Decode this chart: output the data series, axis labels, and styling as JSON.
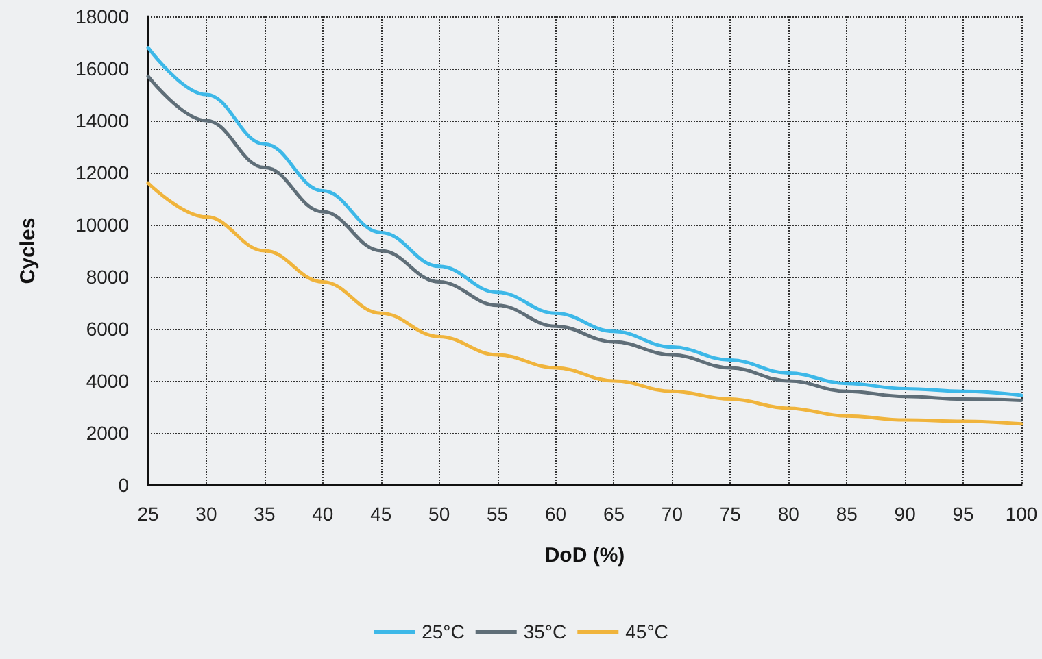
{
  "chart_data": {
    "type": "line",
    "xlabel": "DoD (%)",
    "ylabel": "Cycles",
    "x": [
      25,
      30,
      35,
      40,
      45,
      50,
      55,
      60,
      65,
      70,
      75,
      80,
      85,
      90,
      95,
      100
    ],
    "series": [
      {
        "name": "25°C",
        "color": "#3db8e8",
        "values": [
          16800,
          15000,
          13100,
          11300,
          9700,
          8400,
          7400,
          6600,
          5900,
          5300,
          4800,
          4300,
          3900,
          3700,
          3600,
          3450
        ]
      },
      {
        "name": "35°C",
        "color": "#5f6e78",
        "values": [
          15700,
          14000,
          12200,
          10500,
          9000,
          7800,
          6900,
          6100,
          5500,
          5000,
          4500,
          4000,
          3600,
          3400,
          3300,
          3250
        ]
      },
      {
        "name": "45°C",
        "color": "#f0b43c",
        "values": [
          11600,
          10300,
          9000,
          7800,
          6600,
          5700,
          5000,
          4500,
          4000,
          3600,
          3300,
          2950,
          2650,
          2500,
          2450,
          2350
        ]
      }
    ],
    "xlim": [
      25,
      100
    ],
    "xticks": [
      25,
      30,
      35,
      40,
      45,
      50,
      55,
      60,
      65,
      70,
      75,
      80,
      85,
      90,
      95,
      100
    ],
    "ylim": [
      0,
      18000
    ],
    "yticks": [
      0,
      2000,
      4000,
      6000,
      8000,
      10000,
      12000,
      14000,
      16000,
      18000
    ],
    "grid": true,
    "legend": "bottom",
    "marker": "none",
    "line_style": "solid"
  }
}
